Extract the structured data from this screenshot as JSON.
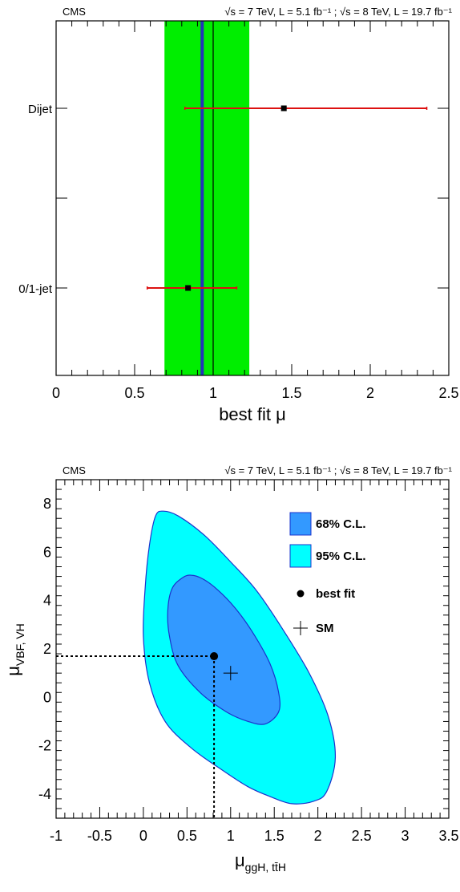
{
  "chart_data": [
    {
      "type": "scatter",
      "header_left": "CMS",
      "header_right": "√s = 7 TeV, L = 5.1 fb⁻¹ ; √s = 8 TeV, L = 19.7 fb⁻¹",
      "xlabel": "best fit μ",
      "xlim": [
        0,
        2.5
      ],
      "xticks": [
        "0",
        "0.5",
        "1",
        "1.5",
        "2",
        "2.5"
      ],
      "categories": [
        "Dijet",
        "0/1-jet"
      ],
      "points": [
        {
          "category": "Dijet",
          "value": 1.45,
          "low": 0.82,
          "high": 2.36
        },
        {
          "category": "0/1-jet",
          "value": 0.84,
          "low": 0.58,
          "high": 1.15
        }
      ],
      "combined": {
        "value": 0.93,
        "band_low": 0.69,
        "band_high": 1.23
      },
      "sm_line": 1.0,
      "colors": {
        "band": "#00ee00",
        "combined_line": "#2233bb",
        "points": "#000000",
        "errors": "#dd1111"
      }
    },
    {
      "type": "contour",
      "header_left": "CMS",
      "header_right": "√s = 7 TeV, L = 5.1 fb⁻¹ ; √s = 8 TeV, L = 19.7 fb⁻¹",
      "xlabel": "μ",
      "xlabel_sub": "ggH, tt̄H",
      "ylabel": "μ",
      "ylabel_sub": "VBF, VH",
      "xlim": [
        -1,
        3.5
      ],
      "ylim": [
        -5,
        9
      ],
      "xticks": [
        "-1",
        "-0.5",
        "0",
        "0.5",
        "1",
        "1.5",
        "2",
        "2.5",
        "3",
        "3.5"
      ],
      "yticks": [
        "-4",
        "-2",
        "0",
        "2",
        "4",
        "6",
        "8"
      ],
      "best_fit": [
        0.81,
        1.7
      ],
      "sm": [
        1.0,
        1.0
      ],
      "contour_68": [
        [
          0.55,
          5.05
        ],
        [
          0.68,
          4.9
        ],
        [
          0.85,
          4.45
        ],
        [
          1.05,
          3.7
        ],
        [
          1.25,
          2.7
        ],
        [
          1.45,
          1.4
        ],
        [
          1.55,
          0.2
        ],
        [
          1.55,
          -0.6
        ],
        [
          1.4,
          -1.1
        ],
        [
          1.2,
          -1.0
        ],
        [
          0.95,
          -0.6
        ],
        [
          0.65,
          0.2
        ],
        [
          0.4,
          1.3
        ],
        [
          0.3,
          2.5
        ],
        [
          0.28,
          3.6
        ],
        [
          0.33,
          4.5
        ],
        [
          0.45,
          4.95
        ]
      ],
      "contour_95": [
        [
          0.23,
          7.7
        ],
        [
          0.4,
          7.5
        ],
        [
          0.7,
          6.7
        ],
        [
          1.0,
          5.6
        ],
        [
          1.3,
          4.4
        ],
        [
          1.6,
          2.8
        ],
        [
          1.9,
          1.0
        ],
        [
          2.12,
          -0.8
        ],
        [
          2.2,
          -2.5
        ],
        [
          2.1,
          -3.9
        ],
        [
          1.95,
          -4.3
        ],
        [
          1.7,
          -4.4
        ],
        [
          1.45,
          -4.1
        ],
        [
          1.2,
          -3.7
        ],
        [
          0.9,
          -3.0
        ],
        [
          0.55,
          -2.1
        ],
        [
          0.25,
          -1.0
        ],
        [
          0.07,
          0.6
        ],
        [
          0.0,
          2.5
        ],
        [
          0.02,
          4.5
        ],
        [
          0.07,
          6.3
        ],
        [
          0.14,
          7.5
        ]
      ],
      "legend": {
        "placement": "top-right",
        "items": [
          {
            "label": "68% C.L.",
            "kind": "box68"
          },
          {
            "label": "95% C.L.",
            "kind": "box95"
          },
          {
            "label": "best fit",
            "kind": "dot"
          },
          {
            "label": "SM",
            "kind": "cross"
          }
        ]
      },
      "colors": {
        "c68": "#3399ff",
        "c95": "#00ffff",
        "edge": "#1a33cc"
      }
    }
  ]
}
